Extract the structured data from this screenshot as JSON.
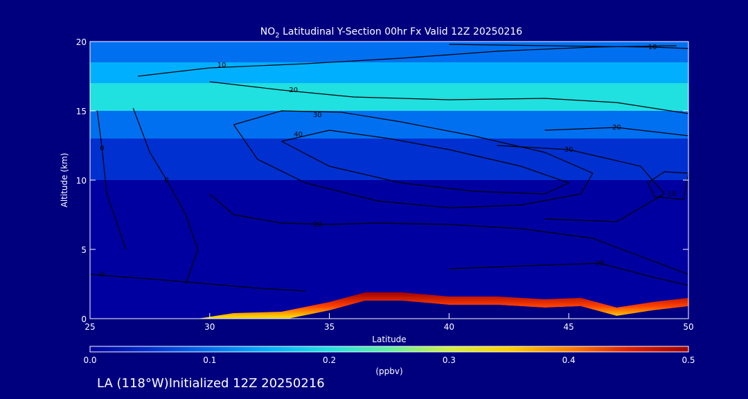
{
  "chart_data": {
    "type": "heatmap",
    "title_prefix": "NO",
    "title_sub": "2",
    "title_rest": " Latitudinal Y-Section 00hr  Fx Valid 12Z 20250216",
    "xlabel": "Latitude",
    "ylabel": "Altitude (km)",
    "xlim": [
      25,
      50
    ],
    "ylim": [
      0,
      20
    ],
    "xticks": [
      "25",
      "30",
      "35",
      "40",
      "45",
      "50"
    ],
    "yticks": [
      "0",
      "5",
      "10",
      "15",
      "20"
    ],
    "colorbar": {
      "min": 0.0,
      "max": 0.5,
      "ticks": [
        "0.0",
        "0.1",
        "0.2",
        "0.3",
        "0.4",
        "0.5"
      ],
      "unit": "(ppbv)",
      "colors": [
        "#0000a0",
        "#0030d0",
        "#0070f0",
        "#00b0ff",
        "#20e0e0",
        "#60f0a0",
        "#d0f040",
        "#ffd000",
        "#ff8000",
        "#e02000",
        "#a00000"
      ]
    },
    "no2_bands": [
      {
        "y0": 0,
        "y1": 10,
        "value": 0.02
      },
      {
        "y0": 10,
        "y1": 13,
        "value": 0.06
      },
      {
        "y0": 13,
        "y1": 15,
        "value": 0.11
      },
      {
        "y0": 15,
        "y1": 17,
        "value": 0.18
      },
      {
        "y0": 17,
        "y1": 18.5,
        "value": 0.14
      },
      {
        "y0": 18.5,
        "y1": 20,
        "value": 0.1
      }
    ],
    "surface_profile": [
      {
        "lat": 25,
        "alt": 0.0
      },
      {
        "lat": 29.5,
        "alt": 0.0
      },
      {
        "lat": 31,
        "alt": 0.4
      },
      {
        "lat": 33,
        "alt": 0.5
      },
      {
        "lat": 35,
        "alt": 1.2
      },
      {
        "lat": 36.5,
        "alt": 1.9
      },
      {
        "lat": 38,
        "alt": 1.9
      },
      {
        "lat": 40,
        "alt": 1.6
      },
      {
        "lat": 42,
        "alt": 1.6
      },
      {
        "lat": 44,
        "alt": 1.4
      },
      {
        "lat": 45.5,
        "alt": 1.5
      },
      {
        "lat": 47,
        "alt": 0.8
      },
      {
        "lat": 48.5,
        "alt": 1.2
      },
      {
        "lat": 50,
        "alt": 1.5
      }
    ],
    "contours": [
      {
        "label": "10",
        "label_at": [
          30.5,
          18.3
        ],
        "points": [
          [
            27,
            17.5
          ],
          [
            30,
            18.1
          ],
          [
            34,
            18.4
          ],
          [
            38,
            18.8
          ],
          [
            42,
            19.3
          ],
          [
            46,
            19.6
          ],
          [
            49.5,
            19.7
          ]
        ]
      },
      {
        "label": "10",
        "label_at": [
          48.5,
          19.6
        ],
        "points": [
          [
            40,
            19.8
          ],
          [
            44,
            19.7
          ],
          [
            48.5,
            19.6
          ],
          [
            50,
            19.5
          ]
        ]
      },
      {
        "label": "20",
        "label_at": [
          33.5,
          16.5
        ],
        "points": [
          [
            30,
            17.1
          ],
          [
            33,
            16.5
          ],
          [
            36,
            16.0
          ],
          [
            40,
            15.8
          ],
          [
            44,
            15.9
          ],
          [
            47,
            15.6
          ],
          [
            50,
            14.8
          ]
        ]
      },
      {
        "label": "20",
        "label_at": [
          47,
          13.8
        ],
        "points": [
          [
            44,
            13.6
          ],
          [
            47,
            13.8
          ],
          [
            50,
            13.2
          ]
        ]
      },
      {
        "label": "30",
        "label_at": [
          34.5,
          14.7
        ],
        "points": [
          [
            31,
            14.0
          ],
          [
            33,
            15.0
          ],
          [
            35.5,
            14.9
          ],
          [
            38,
            14.2
          ],
          [
            41,
            13.2
          ],
          [
            44,
            12.0
          ],
          [
            46,
            10.5
          ],
          [
            45.5,
            9.0
          ],
          [
            43,
            8.2
          ],
          [
            40,
            8.0
          ],
          [
            37,
            8.5
          ],
          [
            34,
            9.8
          ],
          [
            32,
            11.5
          ],
          [
            31,
            14.0
          ]
        ]
      },
      {
        "label": "40",
        "label_at": [
          33.7,
          13.3
        ],
        "points": [
          [
            33,
            12.8
          ],
          [
            35,
            13.6
          ],
          [
            37.5,
            13.0
          ],
          [
            40,
            12.2
          ],
          [
            43,
            11.0
          ],
          [
            45,
            9.8
          ],
          [
            44,
            9.0
          ],
          [
            41,
            9.2
          ],
          [
            38,
            9.8
          ],
          [
            35,
            11.0
          ],
          [
            33,
            12.8
          ]
        ]
      },
      {
        "label": "30",
        "label_at": [
          45,
          12.2
        ],
        "points": [
          [
            42,
            12.5
          ],
          [
            45,
            12.2
          ],
          [
            48,
            11.0
          ],
          [
            49,
            9.0
          ],
          [
            47,
            7.0
          ],
          [
            44,
            7.2
          ]
        ]
      },
      {
        "label": "10",
        "label_at": [
          49.3,
          9.0
        ],
        "points": [
          [
            48.3,
            9.8
          ],
          [
            49,
            10.6
          ],
          [
            50,
            10.5
          ],
          [
            49.8,
            8.6
          ],
          [
            48.6,
            8.8
          ],
          [
            48.3,
            9.8
          ]
        ]
      },
      {
        "label": "20",
        "label_at": [
          34.5,
          6.8
        ],
        "points": [
          [
            30,
            9.0
          ],
          [
            31,
            7.5
          ],
          [
            33,
            6.9
          ],
          [
            35,
            6.8
          ],
          [
            37,
            6.9
          ],
          [
            40,
            6.8
          ],
          [
            43,
            6.5
          ],
          [
            46,
            5.8
          ],
          [
            48,
            4.5
          ],
          [
            50,
            3.2
          ]
        ]
      },
      {
        "label": "20",
        "label_at": [
          46.3,
          4.0
        ],
        "points": [
          [
            40,
            3.6
          ],
          [
            43,
            3.8
          ],
          [
            46.3,
            4.0
          ],
          [
            48.5,
            3.0
          ],
          [
            50,
            2.4
          ]
        ]
      },
      {
        "label": "0",
        "label_at": [
          25.5,
          12.3
        ],
        "points": [
          [
            25.3,
            15.0
          ],
          [
            25.5,
            12.3
          ],
          [
            25.7,
            9.0
          ],
          [
            26.5,
            5.0
          ]
        ]
      },
      {
        "label": "0",
        "label_at": [
          28.2,
          10.0
        ],
        "points": [
          [
            26.8,
            15.2
          ],
          [
            27.5,
            12.0
          ],
          [
            28.2,
            10.0
          ],
          [
            29.0,
            7.5
          ],
          [
            29.5,
            5.0
          ],
          [
            29.0,
            2.5
          ]
        ]
      },
      {
        "label": "0",
        "label_at": [
          25.5,
          3.2
        ],
        "points": [
          [
            25,
            3.2
          ],
          [
            26.5,
            3.0
          ],
          [
            28,
            2.8
          ],
          [
            30,
            2.5
          ],
          [
            32,
            2.2
          ],
          [
            34,
            2.0
          ]
        ]
      }
    ]
  },
  "footer": {
    "location": "LA (118°W)",
    "initialized": "Initialized 12Z 20250216"
  }
}
